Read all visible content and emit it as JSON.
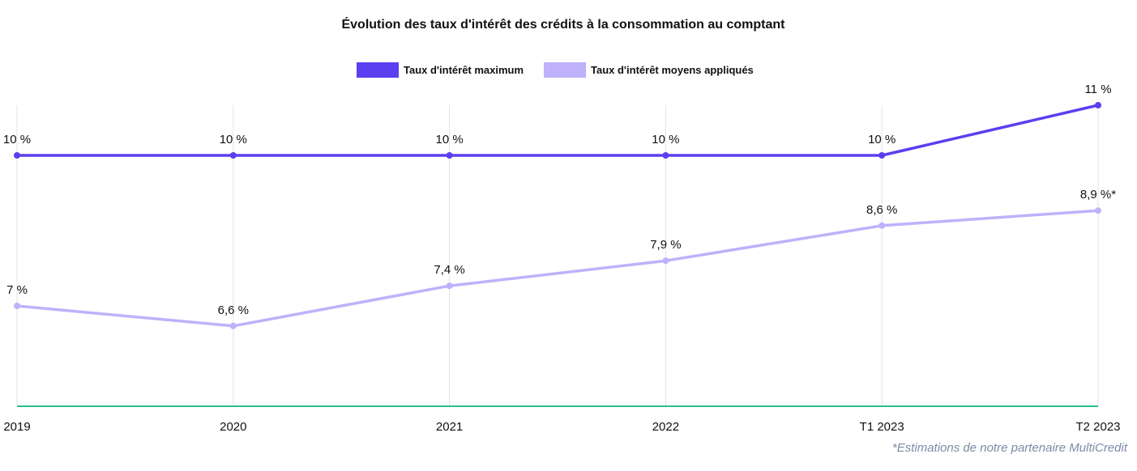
{
  "chart_data": {
    "type": "line",
    "title": "Évolution des taux d'intérêt des crédits à la consommation au comptant",
    "categories": [
      "2019",
      "2020",
      "2021",
      "2022",
      "T1 2023",
      "T2 2023"
    ],
    "ylim": [
      5,
      11
    ],
    "grid": "vertical",
    "legend_position": "top-center",
    "series": [
      {
        "name": "Taux d'intérêt maximum",
        "color": "#5b3ff0",
        "values": [
          10,
          10,
          10,
          10,
          10,
          11
        ],
        "labels": [
          "10 %",
          "10 %",
          "10 %",
          "10 %",
          "10 %",
          "11 %"
        ]
      },
      {
        "name": "Taux d'intérêt moyens appliqués",
        "color": "#bfb1fb",
        "values": [
          7,
          6.6,
          7.4,
          7.9,
          8.6,
          8.9
        ],
        "labels": [
          "7 %",
          "6,6 %",
          "7,4 %",
          "7,9 %",
          "8,6 %",
          "8,9 %*"
        ]
      }
    ],
    "baseline_color": "#2bbf8e",
    "footnote": "*Estimations de notre partenaire MultiCredit"
  }
}
